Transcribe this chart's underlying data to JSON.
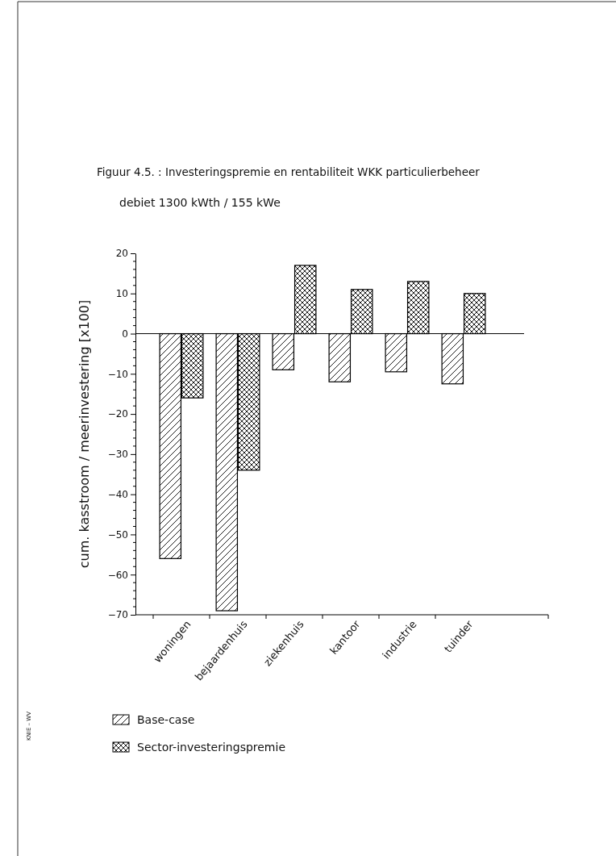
{
  "chart_data": {
    "type": "bar",
    "title": "Figuur 4.5. : Investeringspremie en rentabiliteit WKK particulierbeheer",
    "subtitle": "debiet 1300 kWth / 155 kWe",
    "ylabel": "cum. kasstroom / meerinvestering [x100]",
    "categories": [
      "woningen",
      "bejaardenhuis",
      "ziekenhuis",
      "kantoor",
      "industrie",
      "tuinder"
    ],
    "series": [
      {
        "name": "Base-case",
        "color": "#000000",
        "values": [
          -56,
          -69,
          -9,
          -12,
          -9.5,
          -12.5
        ]
      },
      {
        "name": "Sector-investeringspremie",
        "color": "#000000",
        "values": [
          -16,
          -34,
          17,
          11,
          13,
          10
        ]
      }
    ],
    "ylim": [
      -70,
      20
    ],
    "yticks": [
      -70,
      -60,
      -50,
      -40,
      -30,
      -20,
      -10,
      0,
      10,
      20
    ],
    "legend": "bottom left",
    "annotations": [
      "KNIE – WV"
    ]
  }
}
